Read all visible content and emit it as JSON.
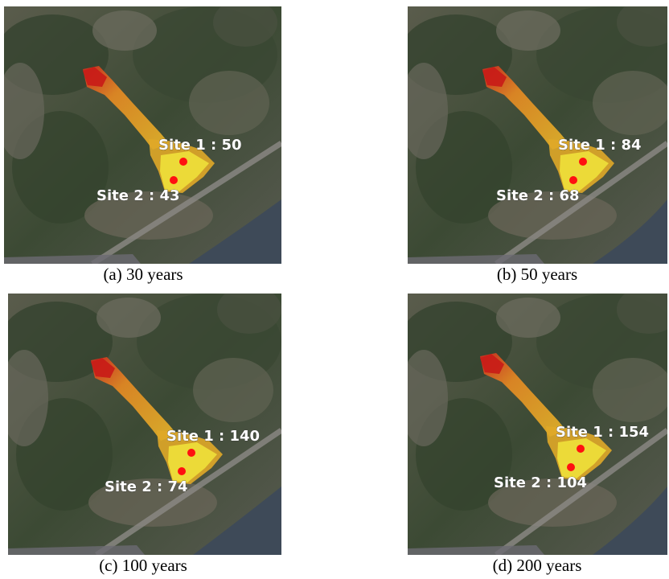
{
  "panels": [
    {
      "caption": "(a) 30 years",
      "site1": "Site 1 : 50",
      "site2": "Site 2 : 43"
    },
    {
      "caption": "(b) 50 years",
      "site1": "Site 1 : 84",
      "site2": "Site 2 : 68"
    },
    {
      "caption": "(c) 100 years",
      "site1": "Site 1 : 140",
      "site2": "Site 2 : 74"
    },
    {
      "caption": "(d) 200 years",
      "site1": "Site 1 : 154",
      "site2": "Site 2 : 104"
    }
  ]
}
